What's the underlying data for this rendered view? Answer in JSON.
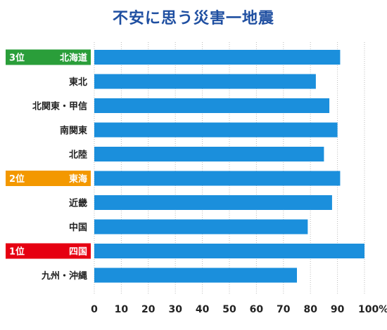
{
  "title": "不安に思う災害一地震",
  "colors": {
    "title": "#1f4fa1",
    "bar": "#1b8fdc",
    "grid": "#bbbbbb",
    "rank1": "#e60012",
    "rank2": "#f39800",
    "rank3": "#2a9e3a"
  },
  "chart_data": {
    "type": "bar",
    "orientation": "horizontal",
    "title": "不安に思う災害一地震",
    "categories": [
      "北海道",
      "東北",
      "北関東・甲信",
      "南関東",
      "北陸",
      "東海",
      "近畿",
      "中国",
      "四国",
      "九州・沖縄"
    ],
    "values": [
      91,
      82,
      87,
      90,
      85,
      91,
      88,
      79,
      100,
      75
    ],
    "ranks": [
      {
        "index": 0,
        "rank_label": "3位",
        "color": "#2a9e3a"
      },
      {
        "index": 5,
        "rank_label": "2位",
        "color": "#f39800"
      },
      {
        "index": 8,
        "rank_label": "1位",
        "color": "#e60012"
      }
    ],
    "xlim": [
      0,
      100
    ],
    "xticks": [
      "0",
      "10",
      "20",
      "30",
      "40",
      "50",
      "60",
      "70",
      "80",
      "90",
      "100%"
    ],
    "grid": true,
    "xlabel": "",
    "ylabel": ""
  }
}
